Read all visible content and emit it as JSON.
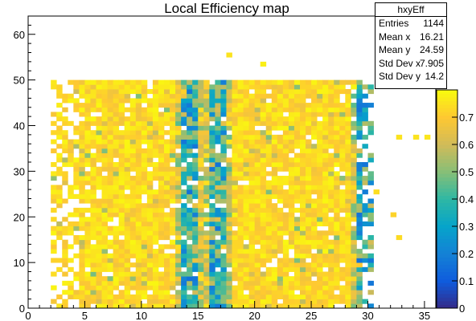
{
  "chart_data": {
    "type": "heatmap",
    "title": "Local Efficiency map",
    "xlim": [
      0,
      36
    ],
    "ylim": [
      0,
      64
    ],
    "x_ticks": [
      0,
      5,
      10,
      15,
      20,
      25,
      30,
      35
    ],
    "y_ticks": [
      0,
      10,
      20,
      30,
      40,
      50,
      60
    ],
    "z_range": [
      0,
      0.8
    ],
    "z_ticks": [
      0,
      0.1,
      0.2,
      0.3,
      0.4,
      0.5,
      0.6,
      0.7
    ],
    "z_tick_labels": [
      "0",
      "0.1",
      "0.2",
      "0.3",
      "0.4",
      "0.5",
      "0.6",
      "0.7"
    ],
    "bin_width_x": 0.5,
    "bin_width_y": 1,
    "filled_region": {
      "x": [
        2,
        30.5
      ],
      "y": [
        0,
        50
      ]
    },
    "low_efficiency_columns_x": [
      14,
      16.5,
      29.5
    ],
    "sparse_bins": [
      [
        17.5,
        55
      ],
      [
        20.5,
        53
      ],
      [
        11.5,
        48
      ],
      [
        28.5,
        48
      ],
      [
        32.5,
        37
      ],
      [
        34,
        37
      ],
      [
        35,
        37
      ],
      [
        30.5,
        25
      ],
      [
        32,
        20
      ],
      [
        32.5,
        15
      ]
    ],
    "colormap": [
      "#352a87",
      "#0f5cdd",
      "#1481d6",
      "#06a4ca",
      "#2eb7a4",
      "#87bf77",
      "#d1bb59",
      "#fec832",
      "#f9fb0e"
    ]
  },
  "stats": {
    "name": "hxyEff",
    "rows": [
      {
        "label": "Entries",
        "value": "1144"
      },
      {
        "label": "Mean x",
        "value": "16.21"
      },
      {
        "label": "Mean y",
        "value": "24.59"
      },
      {
        "label": "Std Dev x",
        "value": "7.905"
      },
      {
        "label": "Std Dev y",
        "value": "14.2"
      }
    ]
  }
}
